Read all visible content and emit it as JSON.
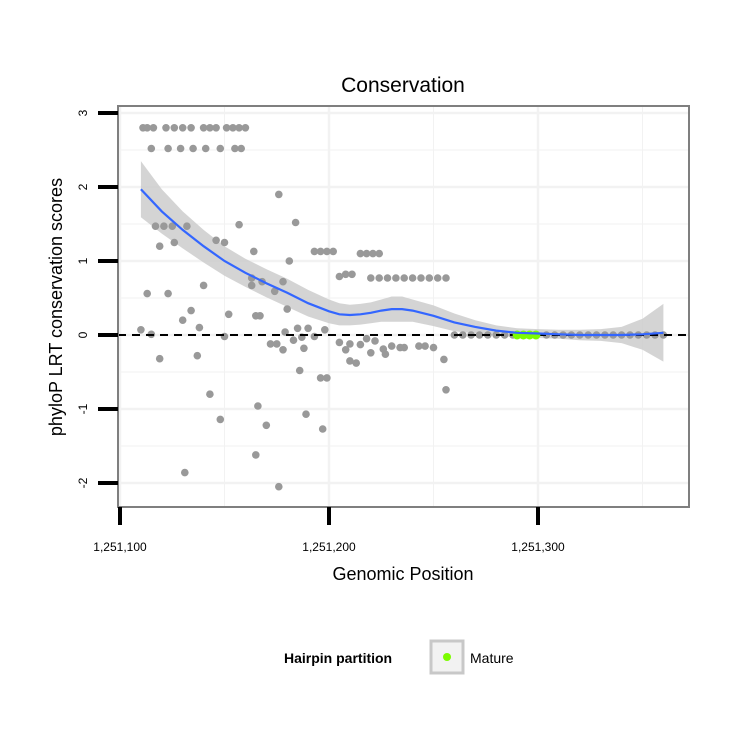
{
  "chart_data": {
    "type": "scatter",
    "title": "Conservation",
    "xlabel": "Genomic Position",
    "ylabel": "phyloP LRT conservation scores",
    "xlim": [
      1251100,
      1251370
    ],
    "ylim": [
      -2.3,
      3.1
    ],
    "x_ticks": [
      {
        "value": 1251100,
        "label": "1,251,100"
      },
      {
        "value": 1251200,
        "label": "1,251,200"
      },
      {
        "value": 1251300,
        "label": "1,251,300"
      }
    ],
    "y_ticks": [
      {
        "value": 3,
        "label": "3"
      },
      {
        "value": 2,
        "label": "2"
      },
      {
        "value": 1,
        "label": "1"
      },
      {
        "value": 0,
        "label": "0"
      },
      {
        "value": -1,
        "label": "-1"
      },
      {
        "value": -2,
        "label": "-2"
      }
    ],
    "grid": true,
    "reference_line": {
      "y": 0,
      "style": "dashed"
    },
    "points": [
      [
        1251111,
        2.8
      ],
      [
        1251113,
        2.8
      ],
      [
        1251116,
        2.8
      ],
      [
        1251122,
        2.8
      ],
      [
        1251126,
        2.8
      ],
      [
        1251130,
        2.8
      ],
      [
        1251134,
        2.8
      ],
      [
        1251140,
        2.8
      ],
      [
        1251143,
        2.8
      ],
      [
        1251146,
        2.8
      ],
      [
        1251151,
        2.8
      ],
      [
        1251154,
        2.8
      ],
      [
        1251157,
        2.8
      ],
      [
        1251160,
        2.8
      ],
      [
        1251115,
        2.52
      ],
      [
        1251123,
        2.52
      ],
      [
        1251129,
        2.52
      ],
      [
        1251135,
        2.52
      ],
      [
        1251141,
        2.52
      ],
      [
        1251148,
        2.52
      ],
      [
        1251155,
        2.52
      ],
      [
        1251158,
        2.52
      ],
      [
        1251176,
        1.9
      ],
      [
        1251117,
        1.47
      ],
      [
        1251121,
        1.47
      ],
      [
        1251125,
        1.47
      ],
      [
        1251132,
        1.47
      ],
      [
        1251157,
        1.49
      ],
      [
        1251184,
        1.52
      ],
      [
        1251146,
        1.28
      ],
      [
        1251150,
        1.25
      ],
      [
        1251126,
        1.25
      ],
      [
        1251119,
        1.2
      ],
      [
        1251164,
        1.13
      ],
      [
        1251193,
        1.13
      ],
      [
        1251196,
        1.13
      ],
      [
        1251199,
        1.13
      ],
      [
        1251202,
        1.13
      ],
      [
        1251181,
        1.0
      ],
      [
        1251208,
        0.82
      ],
      [
        1251211,
        0.82
      ],
      [
        1251205,
        0.79
      ],
      [
        1251215,
        1.1
      ],
      [
        1251218,
        1.1
      ],
      [
        1251221,
        1.1
      ],
      [
        1251224,
        1.1
      ],
      [
        1251220,
        0.77
      ],
      [
        1251224,
        0.77
      ],
      [
        1251228,
        0.77
      ],
      [
        1251232,
        0.77
      ],
      [
        1251236,
        0.77
      ],
      [
        1251240,
        0.77
      ],
      [
        1251244,
        0.77
      ],
      [
        1251248,
        0.77
      ],
      [
        1251252,
        0.77
      ],
      [
        1251256,
        0.77
      ],
      [
        1251163,
        0.77
      ],
      [
        1251168,
        0.72
      ],
      [
        1251178,
        0.72
      ],
      [
        1251140,
        0.67
      ],
      [
        1251163,
        0.67
      ],
      [
        1251174,
        0.59
      ],
      [
        1251113,
        0.56
      ],
      [
        1251123,
        0.56
      ],
      [
        1251180,
        0.35
      ],
      [
        1251134,
        0.33
      ],
      [
        1251152,
        0.28
      ],
      [
        1251165,
        0.26
      ],
      [
        1251167,
        0.26
      ],
      [
        1251130,
        0.2
      ],
      [
        1251110,
        0.07
      ],
      [
        1251138,
        0.1
      ],
      [
        1251185,
        0.09
      ],
      [
        1251190,
        0.09
      ],
      [
        1251198,
        0.07
      ],
      [
        1251179,
        0.04
      ],
      [
        1251115,
        0.01
      ],
      [
        1251150,
        -0.02
      ],
      [
        1251172,
        -0.12
      ],
      [
        1251175,
        -0.12
      ],
      [
        1251183,
        -0.07
      ],
      [
        1251187,
        -0.03
      ],
      [
        1251193,
        -0.02
      ],
      [
        1251205,
        -0.1
      ],
      [
        1251210,
        -0.12
      ],
      [
        1251215,
        -0.13
      ],
      [
        1251218,
        -0.05
      ],
      [
        1251222,
        -0.08
      ],
      [
        1251226,
        -0.19
      ],
      [
        1251230,
        -0.15
      ],
      [
        1251234,
        -0.17
      ],
      [
        1251236,
        -0.17
      ],
      [
        1251243,
        -0.15
      ],
      [
        1251246,
        -0.15
      ],
      [
        1251250,
        -0.17
      ],
      [
        1251208,
        -0.2
      ],
      [
        1251220,
        -0.24
      ],
      [
        1251227,
        -0.26
      ],
      [
        1251178,
        -0.2
      ],
      [
        1251188,
        -0.18
      ],
      [
        1251137,
        -0.28
      ],
      [
        1251119,
        -0.32
      ],
      [
        1251210,
        -0.35
      ],
      [
        1251213,
        -0.38
      ],
      [
        1251255,
        -0.33
      ],
      [
        1251186,
        -0.48
      ],
      [
        1251196,
        -0.58
      ],
      [
        1251199,
        -0.58
      ],
      [
        1251256,
        -0.74
      ],
      [
        1251143,
        -0.8
      ],
      [
        1251166,
        -0.96
      ],
      [
        1251189,
        -1.07
      ],
      [
        1251148,
        -1.14
      ],
      [
        1251170,
        -1.22
      ],
      [
        1251197,
        -1.27
      ],
      [
        1251165,
        -1.62
      ],
      [
        1251131,
        -1.86
      ],
      [
        1251176,
        -2.05
      ],
      [
        1251260,
        0.0
      ],
      [
        1251264,
        0.0
      ],
      [
        1251268,
        0.0
      ],
      [
        1251272,
        0.0
      ],
      [
        1251276,
        0.0
      ],
      [
        1251280,
        0.0
      ],
      [
        1251284,
        0.0
      ],
      [
        1251288,
        0.0
      ],
      [
        1251304,
        0.0
      ],
      [
        1251308,
        0.0
      ],
      [
        1251312,
        0.0
      ],
      [
        1251316,
        0.0
      ],
      [
        1251320,
        0.0
      ],
      [
        1251324,
        0.0
      ],
      [
        1251328,
        0.0
      ],
      [
        1251332,
        0.0
      ],
      [
        1251336,
        0.0
      ],
      [
        1251340,
        0.0
      ],
      [
        1251344,
        0.0
      ],
      [
        1251348,
        0.0
      ],
      [
        1251352,
        0.0
      ],
      [
        1251356,
        0.0
      ],
      [
        1251360,
        0.0
      ]
    ],
    "mature_points": [
      [
        1251290,
        0.0
      ],
      [
        1251293,
        0.0
      ],
      [
        1251296,
        0.0
      ],
      [
        1251299,
        0.0
      ]
    ],
    "smooth": {
      "x": [
        1251110,
        1251120,
        1251130,
        1251140,
        1251150,
        1251160,
        1251170,
        1251180,
        1251190,
        1251200,
        1251205,
        1251210,
        1251215,
        1251220,
        1251225,
        1251230,
        1251235,
        1251240,
        1251250,
        1251260,
        1251270,
        1251280,
        1251290,
        1251300,
        1251310,
        1251320,
        1251330,
        1251340,
        1251350,
        1251360
      ],
      "y": [
        1.97,
        1.67,
        1.42,
        1.2,
        1.0,
        0.84,
        0.7,
        0.57,
        0.43,
        0.32,
        0.28,
        0.27,
        0.28,
        0.3,
        0.33,
        0.35,
        0.35,
        0.33,
        0.26,
        0.17,
        0.11,
        0.06,
        0.03,
        0.02,
        0.01,
        0.0,
        0.0,
        0.0,
        0.01,
        0.03
      ],
      "ci_upper": [
        2.35,
        1.97,
        1.67,
        1.42,
        1.2,
        1.03,
        0.89,
        0.76,
        0.61,
        0.48,
        0.43,
        0.41,
        0.42,
        0.44,
        0.48,
        0.52,
        0.52,
        0.48,
        0.4,
        0.29,
        0.2,
        0.13,
        0.09,
        0.08,
        0.07,
        0.07,
        0.08,
        0.11,
        0.22,
        0.42
      ],
      "ci_lower": [
        1.59,
        1.37,
        1.17,
        0.98,
        0.8,
        0.65,
        0.51,
        0.38,
        0.25,
        0.16,
        0.13,
        0.13,
        0.14,
        0.16,
        0.18,
        0.18,
        0.18,
        0.18,
        0.12,
        0.05,
        0.02,
        -0.01,
        -0.03,
        -0.04,
        -0.05,
        -0.07,
        -0.08,
        -0.11,
        -0.2,
        -0.36
      ]
    },
    "legend": {
      "title": "Hairpin partition",
      "entries": [
        {
          "label": "Mature",
          "color": "#7cfc00"
        }
      ],
      "position": "bottom"
    },
    "colors": {
      "points": "#999999",
      "smooth_line": "#3366ff",
      "ci_band": "#cccccc",
      "mature": "#7cfc00",
      "panel_border": "#7f7f7f",
      "grid": "#f2f2f2"
    }
  }
}
